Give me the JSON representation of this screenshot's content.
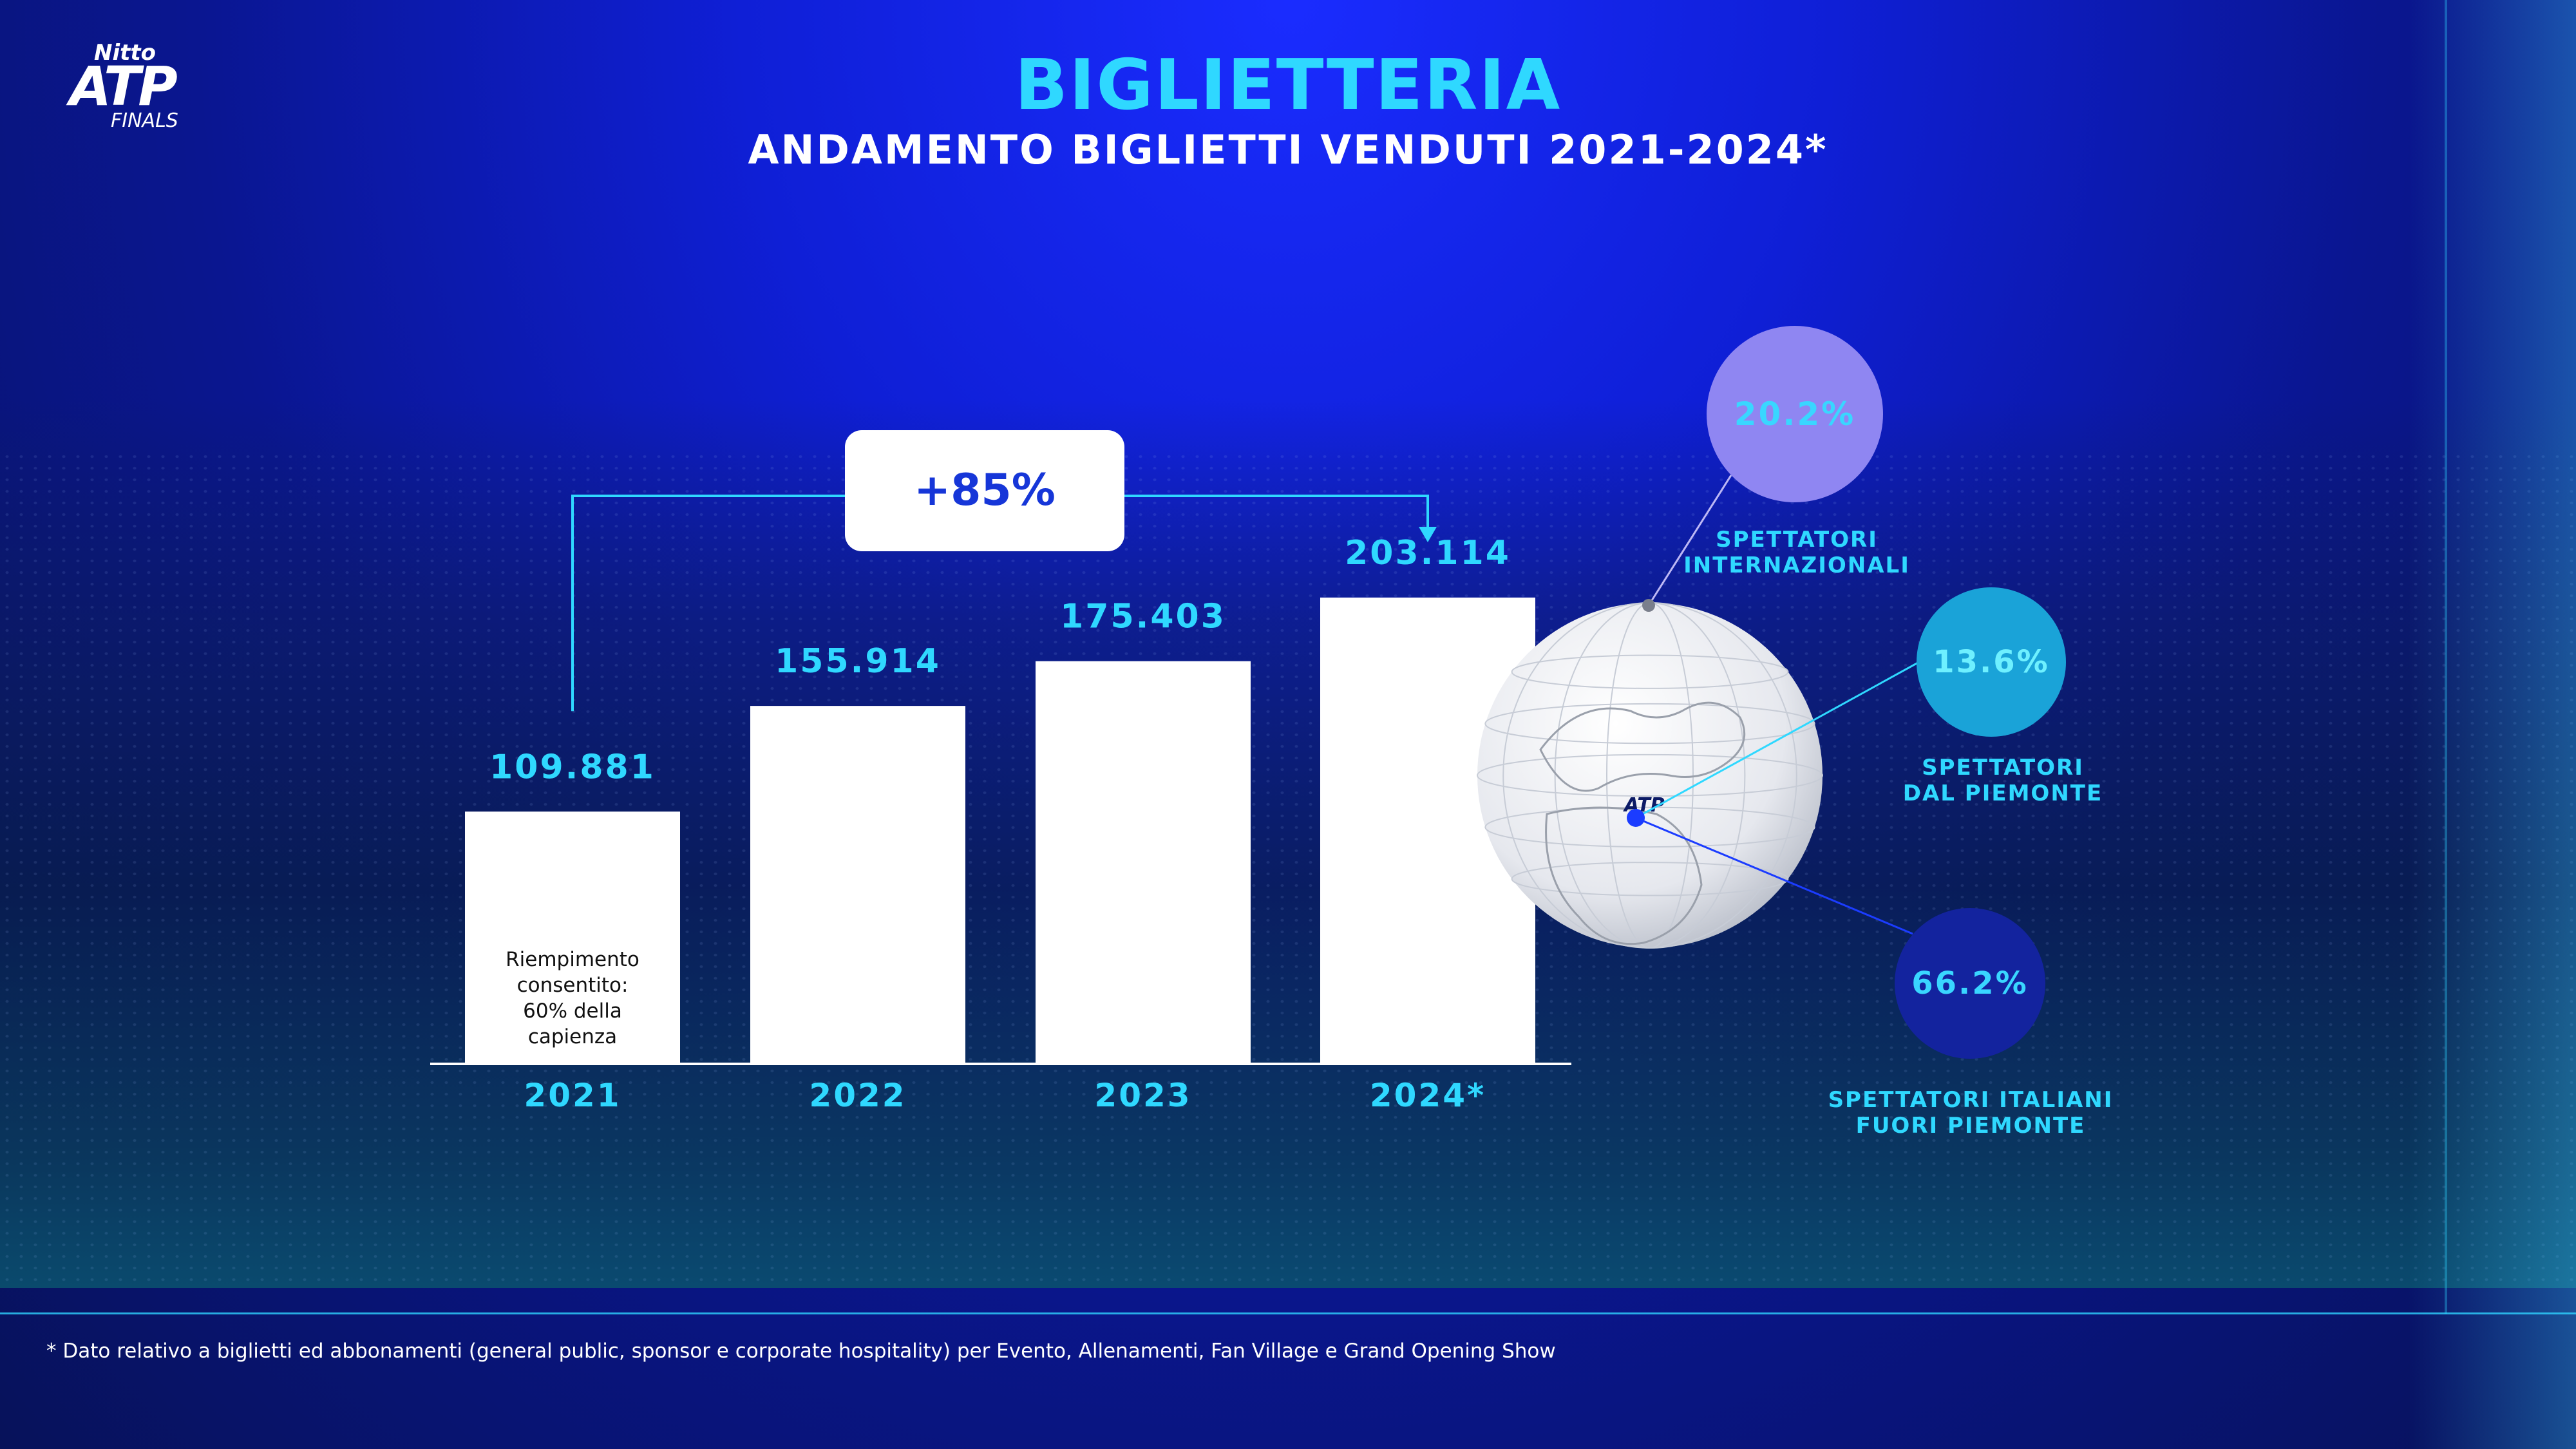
{
  "header": {
    "logo_top": "Nitto",
    "logo_main": "ATP",
    "logo_bottom": "FINALS",
    "title": "BIGLIETTERIA",
    "subtitle": "ANDAMENTO BIGLIETTI VENDUTI 2021-2024*"
  },
  "chart_data": {
    "type": "bar",
    "categories": [
      "2021",
      "2022",
      "2023",
      "2024*"
    ],
    "values": [
      109881,
      155914,
      175403,
      203114
    ],
    "value_labels": [
      "109.881",
      "155.914",
      "175.403",
      "203.114"
    ],
    "title": "ANDAMENTO BIGLIETTI VENDUTI 2021-2024*",
    "ylim": [
      0,
      230000
    ],
    "grid": false,
    "annotations": {
      "growth": "+85%",
      "note_2021": [
        "Riempimento",
        "consentito:",
        "60% della",
        "capienza"
      ]
    }
  },
  "spectators": [
    {
      "value": "20.2%",
      "label": [
        "SPETTATORI",
        "INTERNAZIONALI"
      ],
      "color": "#8f86f2"
    },
    {
      "value": "13.6%",
      "label": [
        "SPETTATORI",
        "DAL PIEMONTE"
      ],
      "color": "#1aa3d8"
    },
    {
      "value": "66.2%",
      "label": [
        "SPETTATORI ITALIANI",
        "FUORI PIEMONTE"
      ],
      "color": "#13239e"
    }
  ],
  "globe_logo": "ATP",
  "footnote": "* Dato relativo a biglietti ed abbonamenti (general public, sponsor e corporate hospitality) per Evento, Allenamenti, Fan Village e Grand Opening Show",
  "colors": {
    "accent": "#2fd8ff",
    "bar": "#ffffff",
    "growth_text": "#1636d8"
  }
}
